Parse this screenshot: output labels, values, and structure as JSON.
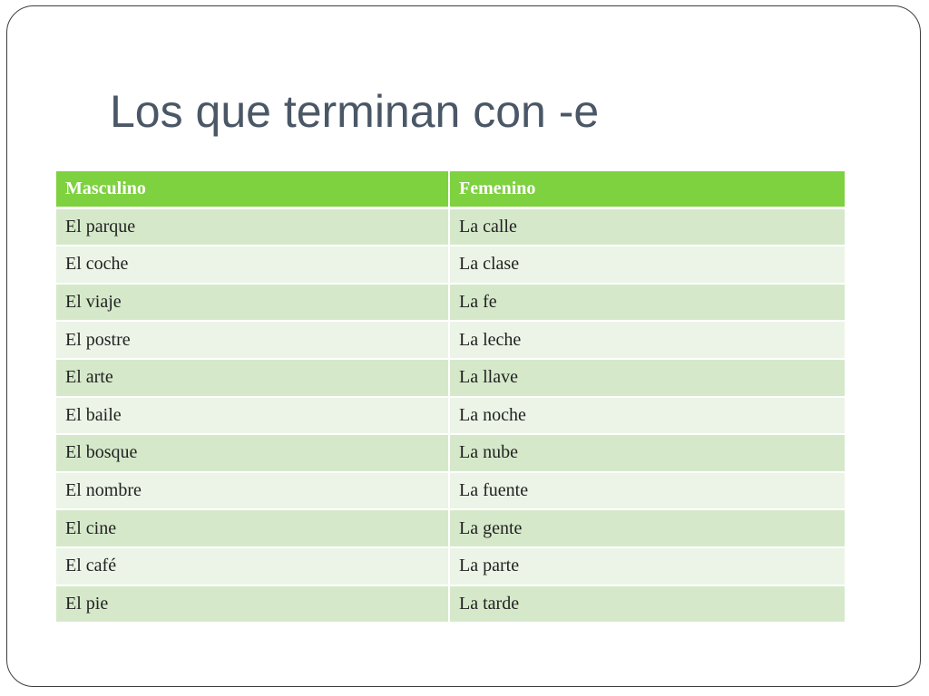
{
  "slide": {
    "title": "Los que terminan con -e"
  },
  "table": {
    "headers": [
      "Masculino",
      "Femenino"
    ],
    "rows": [
      [
        "El parque",
        "La calle"
      ],
      [
        "El coche",
        "La clase"
      ],
      [
        "El viaje",
        "La fe"
      ],
      [
        "El postre",
        "La leche"
      ],
      [
        "El arte",
        "La llave"
      ],
      [
        "El baile",
        "La noche"
      ],
      [
        "El bosque",
        "La nube"
      ],
      [
        "El nombre",
        "La fuente"
      ],
      [
        "El cine",
        "La gente"
      ],
      [
        "El café",
        "La parte"
      ],
      [
        "El pie",
        "La tarde"
      ]
    ]
  },
  "colors": {
    "header_bg": "#7ed13f",
    "row_band_dark": "#d5e9ca",
    "row_band_light": "#ebf4e6",
    "title_text": "#4a5766"
  }
}
